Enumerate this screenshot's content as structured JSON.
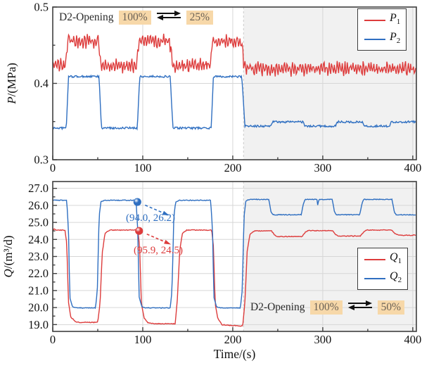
{
  "annotations": {
    "top": {
      "prefix": "D2-Opening",
      "from": "100%",
      "to": "25%"
    },
    "bottom": {
      "prefix": "D2-Opening",
      "from": "100%",
      "to": "50%"
    },
    "highlight_color": "#f7d8a9"
  },
  "legends": {
    "top": [
      {
        "sym": "P",
        "sub": "1",
        "color": "#dd3c3c"
      },
      {
        "sym": "P",
        "sub": "2",
        "color": "#2f6fc1"
      }
    ],
    "bottom": [
      {
        "sym": "Q",
        "sub": "1",
        "color": "#dd3c3c"
      },
      {
        "sym": "Q",
        "sub": "2",
        "color": "#2f6fc1"
      }
    ]
  },
  "chart_data": [
    {
      "type": "line",
      "title": "",
      "xlabel": "",
      "ylabel": "P/(MPa)",
      "ylabel_sym": "P",
      "ylabel_rest": "/(MPa)",
      "xlim": [
        0,
        404
      ],
      "ylim": [
        0.3,
        0.5
      ],
      "xticks": {
        "values": [
          0,
          100,
          200,
          300,
          400
        ],
        "labels": [
          "0",
          "100",
          "200",
          "300",
          "400"
        ]
      },
      "xminor": [
        50,
        150,
        250,
        350
      ],
      "yticks": {
        "values": [
          0.5,
          0.4,
          0.3
        ],
        "labels": [
          "0.5",
          "0.4",
          "0.3"
        ]
      },
      "yminor": [
        0.45,
        0.35
      ],
      "grid_x": [
        100,
        200,
        300,
        400
      ],
      "grid_y": [
        0.4
      ],
      "grid_on": true,
      "legend_position": "top-right",
      "shaded_from": 212,
      "series": [
        {
          "name": "P2",
          "color": "#2f6fc1",
          "noise": 0.0013,
          "wave": false,
          "points": [
            [
              0,
              0.3415
            ],
            [
              15,
              0.3415
            ],
            [
              17.5,
              0.409
            ],
            [
              51.5,
              0.409
            ],
            [
              54,
              0.3415
            ],
            [
              94,
              0.3415
            ],
            [
              96.5,
              0.409
            ],
            [
              130.5,
              0.409
            ],
            [
              133.5,
              0.3415
            ],
            [
              176,
              0.3415
            ],
            [
              178.5,
              0.409
            ],
            [
              210,
              0.409
            ],
            [
              213.5,
              0.344
            ],
            [
              242,
              0.344
            ],
            [
              244,
              0.3495
            ],
            [
              278,
              0.3495
            ],
            [
              280,
              0.344
            ],
            [
              314,
              0.344
            ],
            [
              316,
              0.3495
            ],
            [
              344,
              0.3495
            ],
            [
              346,
              0.344
            ],
            [
              374,
              0.344
            ],
            [
              376,
              0.3495
            ],
            [
              404,
              0.3495
            ]
          ]
        },
        {
          "name": "P1",
          "color": "#dd3c3c",
          "noise": 0.0085,
          "wave": true,
          "points": [
            [
              0,
              0.4235
            ],
            [
              14,
              0.4235
            ],
            [
              16.5,
              0.4555
            ],
            [
              51,
              0.4555
            ],
            [
              53.5,
              0.4235
            ],
            [
              93,
              0.4235
            ],
            [
              95.5,
              0.4555
            ],
            [
              130,
              0.4555
            ],
            [
              133,
              0.4235
            ],
            [
              175,
              0.4235
            ],
            [
              177.5,
              0.4555
            ],
            [
              209.5,
              0.4555
            ],
            [
              213,
              0.4195
            ],
            [
              404,
              0.4195
            ]
          ]
        }
      ]
    },
    {
      "type": "line",
      "title": "",
      "xlabel": "Time/(s)",
      "ylabel": "Q/(m³/d)",
      "ylabel_sym": "Q",
      "ylabel_rest": "/(m³/d)",
      "xlim": [
        0,
        404
      ],
      "ylim": [
        18.6,
        27.4
      ],
      "xticks": {
        "values": [
          0,
          100,
          200,
          300,
          400
        ],
        "labels": [
          "0",
          "100",
          "200",
          "300",
          "400"
        ]
      },
      "xminor": [
        50,
        150,
        250,
        350
      ],
      "yticks": {
        "values": [
          27,
          26,
          25,
          24,
          23,
          22,
          21,
          20,
          19
        ],
        "labels": [
          "27.0",
          "26.0",
          "25.0",
          "24.0",
          "23.0",
          "22.0",
          "21.0",
          "20.0",
          "19.0"
        ]
      },
      "yminor": [
        26.5,
        25.5,
        24.5,
        23.5,
        22.5,
        21.5,
        20.5,
        19.5
      ],
      "grid_x": [
        100,
        200,
        300,
        400
      ],
      "grid_y": [
        27,
        26,
        25,
        24,
        23,
        22,
        21,
        20,
        19
      ],
      "grid_on": true,
      "legend_position": "right",
      "shaded_from": 212,
      "series": [
        {
          "name": "Q1",
          "color": "#dd3c3c",
          "noise": 0.022,
          "wave": false,
          "points": [
            [
              0,
              24.55
            ],
            [
              2,
              24.62
            ],
            [
              4,
              24.55
            ],
            [
              13.5,
              24.55
            ],
            [
              15.5,
              23.8
            ],
            [
              17.5,
              20.3
            ],
            [
              20,
              19.45
            ],
            [
              25,
              19.18
            ],
            [
              30,
              19.13
            ],
            [
              50,
              19.13
            ],
            [
              52.5,
              20.2
            ],
            [
              55,
              23.2
            ],
            [
              58,
              24.35
            ],
            [
              63,
              24.55
            ],
            [
              94.5,
              24.55
            ],
            [
              96.5,
              23.6
            ],
            [
              98.5,
              20.2
            ],
            [
              101.5,
              19.4
            ],
            [
              106,
              19.1
            ],
            [
              112,
              19.05
            ],
            [
              136,
              19.05
            ],
            [
              138.5,
              20.5
            ],
            [
              141,
              23.3
            ],
            [
              144,
              24.35
            ],
            [
              149,
              24.55
            ],
            [
              176.5,
              24.55
            ],
            [
              178.5,
              23.6
            ],
            [
              180.5,
              20.2
            ],
            [
              183.5,
              19.35
            ],
            [
              188,
              19.0
            ],
            [
              196,
              18.95
            ],
            [
              211,
              18.92
            ],
            [
              213.5,
              20.3
            ],
            [
              216,
              23.3
            ],
            [
              219,
              24.3
            ],
            [
              224,
              24.5
            ],
            [
              243,
              24.5
            ],
            [
              246.5,
              24.25
            ],
            [
              249.5,
              24.17
            ],
            [
              277,
              24.17
            ],
            [
              280.5,
              24.42
            ],
            [
              284,
              24.52
            ],
            [
              311,
              24.52
            ],
            [
              314.5,
              24.28
            ],
            [
              317.5,
              24.2
            ],
            [
              342,
              24.2
            ],
            [
              345.5,
              24.45
            ],
            [
              349,
              24.55
            ],
            [
              377,
              24.55
            ],
            [
              380.5,
              24.33
            ],
            [
              384,
              24.25
            ],
            [
              404,
              24.25
            ]
          ]
        },
        {
          "name": "Q2",
          "color": "#2f6fc1",
          "noise": 0.022,
          "wave": false,
          "points": [
            [
              0,
              26.3
            ],
            [
              15.5,
              26.3
            ],
            [
              17.5,
              24.5
            ],
            [
              19,
              20.6
            ],
            [
              22,
              20.05
            ],
            [
              26,
              19.98
            ],
            [
              47.5,
              19.98
            ],
            [
              49.5,
              21.0
            ],
            [
              51.5,
              25.3
            ],
            [
              53.5,
              26.2
            ],
            [
              57,
              26.3
            ],
            [
              92.5,
              26.3
            ],
            [
              94.5,
              24.5
            ],
            [
              96,
              20.6
            ],
            [
              99,
              20.05
            ],
            [
              103,
              19.98
            ],
            [
              130.5,
              19.98
            ],
            [
              132.5,
              21.0
            ],
            [
              134.5,
              25.3
            ],
            [
              136.5,
              26.2
            ],
            [
              140,
              26.3
            ],
            [
              175.5,
              26.3
            ],
            [
              177.5,
              24.5
            ],
            [
              179,
              20.6
            ],
            [
              182,
              20.05
            ],
            [
              186,
              19.98
            ],
            [
              208.5,
              19.98
            ],
            [
              210.5,
              21.0
            ],
            [
              212.5,
              25.3
            ],
            [
              214.5,
              26.25
            ],
            [
              218,
              26.35
            ],
            [
              240,
              26.35
            ],
            [
              242.5,
              25.6
            ],
            [
              244.5,
              25.45
            ],
            [
              276,
              25.45
            ],
            [
              278.5,
              26.1
            ],
            [
              280.5,
              26.35
            ],
            [
              293.5,
              26.35
            ],
            [
              294.5,
              26.0
            ],
            [
              295.5,
              26.35
            ],
            [
              310.5,
              26.35
            ],
            [
              313,
              25.6
            ],
            [
              315,
              25.45
            ],
            [
              341,
              25.45
            ],
            [
              343.5,
              26.1
            ],
            [
              345.5,
              26.35
            ],
            [
              377,
              26.35
            ],
            [
              379.5,
              25.6
            ],
            [
              381.5,
              25.45
            ],
            [
              404,
              25.45
            ]
          ]
        }
      ],
      "markers": [
        {
          "x": 94.0,
          "y": 26.2,
          "label": "(94.0, 26.2)",
          "color": "#2f6fc1"
        },
        {
          "x": 95.9,
          "y": 24.5,
          "label": "(95.9, 24.5)",
          "color": "#dd3c3c"
        }
      ]
    }
  ],
  "style": {
    "shade_color": "#f1f1f1",
    "grid_color": "#d6d6d6",
    "frame_color": "#3f3f3f"
  }
}
